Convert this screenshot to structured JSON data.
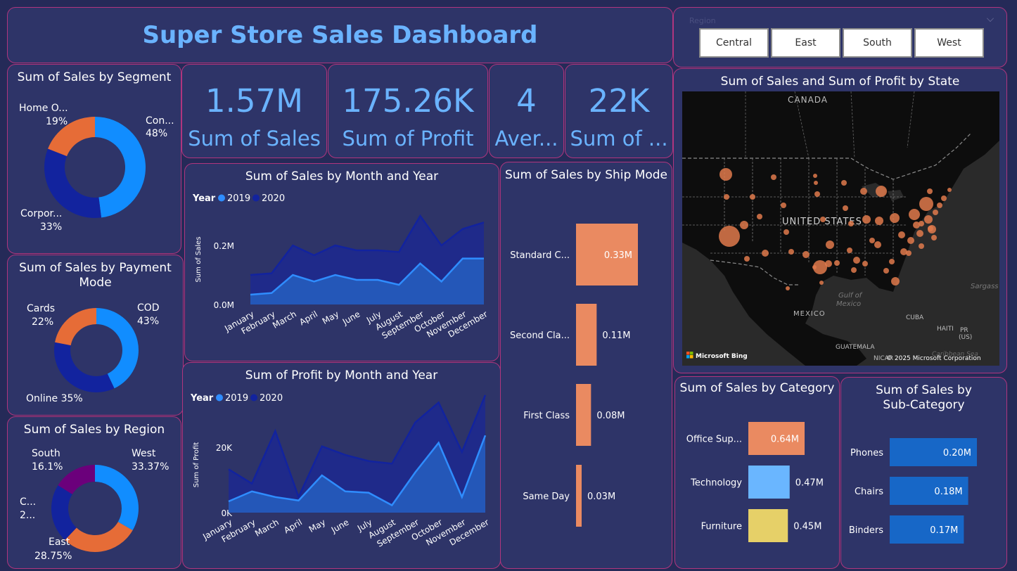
{
  "title": "Super Store Sales Dashboard",
  "kpis": {
    "sales": {
      "value": "1.57M",
      "label": "Sum of Sales"
    },
    "profit": {
      "value": "175.26K",
      "label": "Sum of Profit"
    },
    "avg": {
      "value": "4",
      "label": "Aver..."
    },
    "qty": {
      "value": "22K",
      "label": "Sum of ..."
    }
  },
  "region_slicer": {
    "label": "Region",
    "options": [
      "Central",
      "East",
      "South",
      "West"
    ],
    "icon": "chevron-down-icon"
  },
  "segment": {
    "title": "Sum of Sales by Segment",
    "labels": [
      {
        "name": "Con...",
        "pct": "48%"
      },
      {
        "name": "Corpor...",
        "pct": "33%"
      },
      {
        "name": "Home O...",
        "pct": "19%"
      }
    ]
  },
  "payment": {
    "title": "Sum of Sales by Payment Mode",
    "labels": [
      {
        "name": "COD",
        "pct": "43%"
      },
      {
        "name": "Online 35%"
      },
      {
        "name": "Cards",
        "pct": "22%"
      }
    ]
  },
  "region": {
    "title": "Sum of Sales by Region",
    "labels": [
      {
        "name": "West",
        "pct": "33.37%"
      },
      {
        "name": "East",
        "pct": "28.75%"
      },
      {
        "name": "C...",
        "pct": "2..."
      },
      {
        "name": "South",
        "pct": "16.1%"
      }
    ]
  },
  "sales_month": {
    "title": "Sum of Sales by Month and Year",
    "legend_title": "Year",
    "legend": [
      "2019",
      "2020"
    ],
    "ylabel": "Sum of Sales",
    "yticks": [
      "0.2M",
      "0.0M"
    ]
  },
  "profit_month": {
    "title": "Sum of Profit by Month and Year",
    "legend_title": "Year",
    "legend": [
      "2019",
      "2020"
    ],
    "ylabel": "Sum of Profit",
    "yticks": [
      "20K",
      "0K"
    ]
  },
  "ship": {
    "title": "Sum of Sales by Ship Mode"
  },
  "map": {
    "title": "Sum of Sales and Sum of Profit by State",
    "labels": {
      "canada": "CANADA",
      "us": "UNITED STATES",
      "mexico": "MEXICO",
      "gulf1": "Gulf of",
      "gulf2": "Mexico",
      "cuba": "CUBA",
      "haiti": "HAITI",
      "pr1": "PR",
      "pr2": "(US)",
      "guatemala": "GUATEMALA",
      "nica": "NICAR",
      "sargasso": "Sargass",
      "caribbean": "Caribbean Sea"
    },
    "brand": "Microsoft Bing",
    "copyright": "© 2025 Microsoft Corporation"
  },
  "category": {
    "title": "Sum of Sales by Category"
  },
  "subcat": {
    "title": "Sum of Sales by Sub-Category"
  },
  "chart_data": [
    {
      "type": "pie",
      "title": "Sum of Sales by Segment",
      "categories": [
        "Consumer",
        "Corporate",
        "Home Office"
      ],
      "values": [
        48,
        33,
        19
      ],
      "colors": [
        "#118dff",
        "#12239e",
        "#e66c37"
      ]
    },
    {
      "type": "pie",
      "title": "Sum of Sales by Payment Mode",
      "categories": [
        "COD",
        "Online",
        "Cards"
      ],
      "values": [
        43,
        35,
        22
      ],
      "colors": [
        "#118dff",
        "#12239e",
        "#e66c37"
      ]
    },
    {
      "type": "pie",
      "title": "Sum of Sales by Region",
      "categories": [
        "West",
        "East",
        "Central",
        "South"
      ],
      "values": [
        33.37,
        28.75,
        21.78,
        16.1
      ],
      "colors": [
        "#118dff",
        "#e66c37",
        "#12239e",
        "#6b007b"
      ]
    },
    {
      "type": "area",
      "title": "Sum of Sales by Month and Year",
      "categories": [
        "January",
        "February",
        "March",
        "April",
        "May",
        "June",
        "July",
        "August",
        "September",
        "October",
        "November",
        "December"
      ],
      "series": [
        {
          "name": "2019",
          "values": [
            0.03,
            0.035,
            0.09,
            0.07,
            0.09,
            0.075,
            0.075,
            0.06,
            0.125,
            0.07,
            0.14,
            0.14
          ],
          "color": "#2f8dff"
        },
        {
          "name": "2020",
          "values": [
            0.06,
            0.06,
            0.09,
            0.08,
            0.09,
            0.09,
            0.09,
            0.1,
            0.145,
            0.11,
            0.09,
            0.11
          ],
          "color": "#12239e"
        }
      ],
      "stacked": true,
      "ylabel": "Sum of Sales",
      "ylim": [
        0,
        0.3
      ]
    },
    {
      "type": "area",
      "title": "Sum of Profit by Month and Year",
      "categories": [
        "January",
        "February",
        "March",
        "April",
        "May",
        "June",
        "July",
        "August",
        "September",
        "October",
        "November",
        "December"
      ],
      "series": [
        {
          "name": "2019",
          "values": [
            2600,
            4900,
            3600,
            2800,
            8600,
            4900,
            4600,
            1700,
            9300,
            16100,
            3600,
            17800
          ],
          "color": "#2f8dff"
        },
        {
          "name": "2020",
          "values": [
            7400,
            1800,
            15200,
            800,
            6700,
            8400,
            7300,
            9600,
            11500,
            9300,
            10400,
            9300
          ],
          "color": "#12239e"
        }
      ],
      "stacked": true,
      "ylabel": "Sum of Profit",
      "ylim": [
        0,
        30000
      ]
    },
    {
      "type": "bar",
      "orientation": "vertical-bars-horizontal-layout",
      "title": "Sum of Sales by Ship Mode",
      "categories": [
        "Standard C...",
        "Second Cla...",
        "First Class",
        "Same Day"
      ],
      "values": [
        0.33,
        0.11,
        0.08,
        0.03
      ],
      "labels": [
        "0.33M",
        "0.11M",
        "0.08M",
        "0.03M"
      ],
      "color": "#ea8a61",
      "xlim": [
        0,
        0.33
      ]
    },
    {
      "type": "bar",
      "orientation": "horizontal",
      "title": "Sum of Sales by Category",
      "categories": [
        "Office Sup...",
        "Technology",
        "Furniture"
      ],
      "values": [
        0.64,
        0.47,
        0.45
      ],
      "labels": [
        "0.64M",
        "0.47M",
        "0.45M"
      ],
      "colors": [
        "#ea8a61",
        "#6ab6ff",
        "#e6d068"
      ],
      "xlim": [
        0,
        0.64
      ]
    },
    {
      "type": "bar",
      "orientation": "horizontal",
      "title": "Sum of Sales by Sub-Category",
      "categories": [
        "Phones",
        "Chairs",
        "Binders"
      ],
      "values": [
        0.2,
        0.18,
        0.17
      ],
      "labels": [
        "0.20M",
        "0.18M",
        "0.17M"
      ],
      "color": "#1767c7",
      "xlim": [
        0,
        0.2
      ]
    },
    {
      "type": "scatter",
      "title": "Sum of Sales and Sum of Profit by State",
      "note": "bubble map, bubble sizes relative",
      "color": "#e07a4c"
    }
  ]
}
